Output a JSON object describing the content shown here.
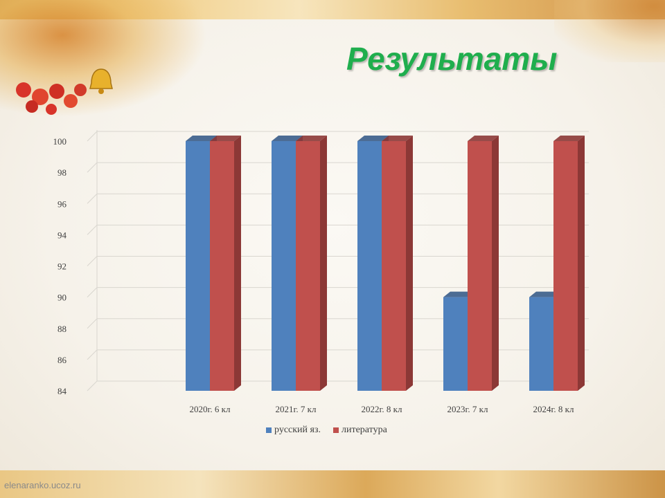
{
  "title": "Результаты",
  "watermark": "elenaranko.ucoz.ru",
  "colors": {
    "series_1": "#4f81bd",
    "series_1_side": "#385d8a",
    "series_2": "#c0504d",
    "series_2_side": "#8c3836",
    "title": "#1fae4d"
  },
  "chart_data": {
    "type": "bar",
    "categories": [
      "2020г. 6 кл",
      "2021г. 7 кл",
      "2022г. 8 кл",
      "2023г. 7 кл",
      "2024г. 8 кл"
    ],
    "series": [
      {
        "name": "русский яз.",
        "values": [
          100,
          100,
          100,
          90,
          90
        ]
      },
      {
        "name": "литература",
        "values": [
          100,
          100,
          100,
          100,
          100
        ]
      }
    ],
    "yticks": [
      "84",
      "86",
      "88",
      "90",
      "92",
      "94",
      "96",
      "98",
      "100"
    ],
    "ylim": [
      84,
      100
    ],
    "grid": true,
    "legend_position": "bottom",
    "style": "3d-column"
  }
}
